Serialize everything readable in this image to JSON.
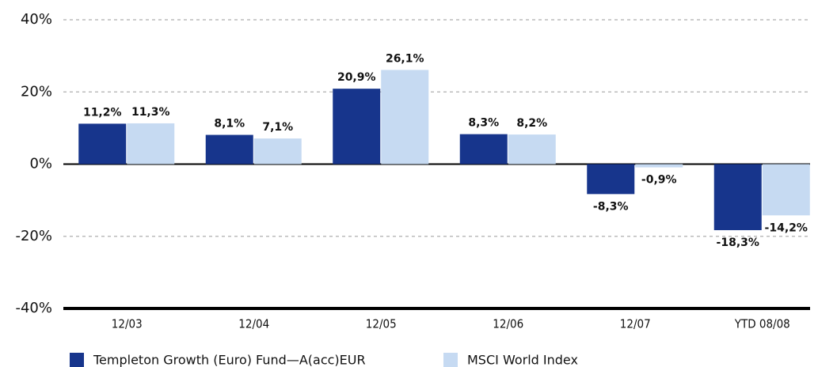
{
  "chart_data": {
    "type": "bar",
    "categories": [
      "12/03",
      "12/04",
      "12/05",
      "12/06",
      "12/07",
      "YTD 08/08"
    ],
    "series": [
      {
        "name": "Templeton Growth (Euro) Fund—A(acc)EUR",
        "color": "#17358c",
        "values": [
          11.2,
          8.1,
          20.9,
          8.3,
          -8.3,
          -18.3
        ],
        "value_labels": [
          "11,2%",
          "8,1%",
          "20,9%",
          "8,3%",
          "-8,3%",
          "-18,3%"
        ]
      },
      {
        "name": "MSCI World Index",
        "color": "#c6daf2",
        "values": [
          11.3,
          7.1,
          26.1,
          8.2,
          -0.9,
          -14.2
        ],
        "value_labels": [
          "11,3%",
          "7,1%",
          "26,1%",
          "8,2%",
          "-0,9%",
          "-14,2%"
        ]
      }
    ],
    "ylim": [
      -40,
      40
    ],
    "yticks": [
      {
        "value": -40,
        "label": "-40%"
      },
      {
        "value": -20,
        "label": "-20%"
      },
      {
        "value": 0,
        "label": "0%"
      },
      {
        "value": 20,
        "label": "20%"
      },
      {
        "value": 40,
        "label": "40%"
      }
    ],
    "grid": true
  }
}
